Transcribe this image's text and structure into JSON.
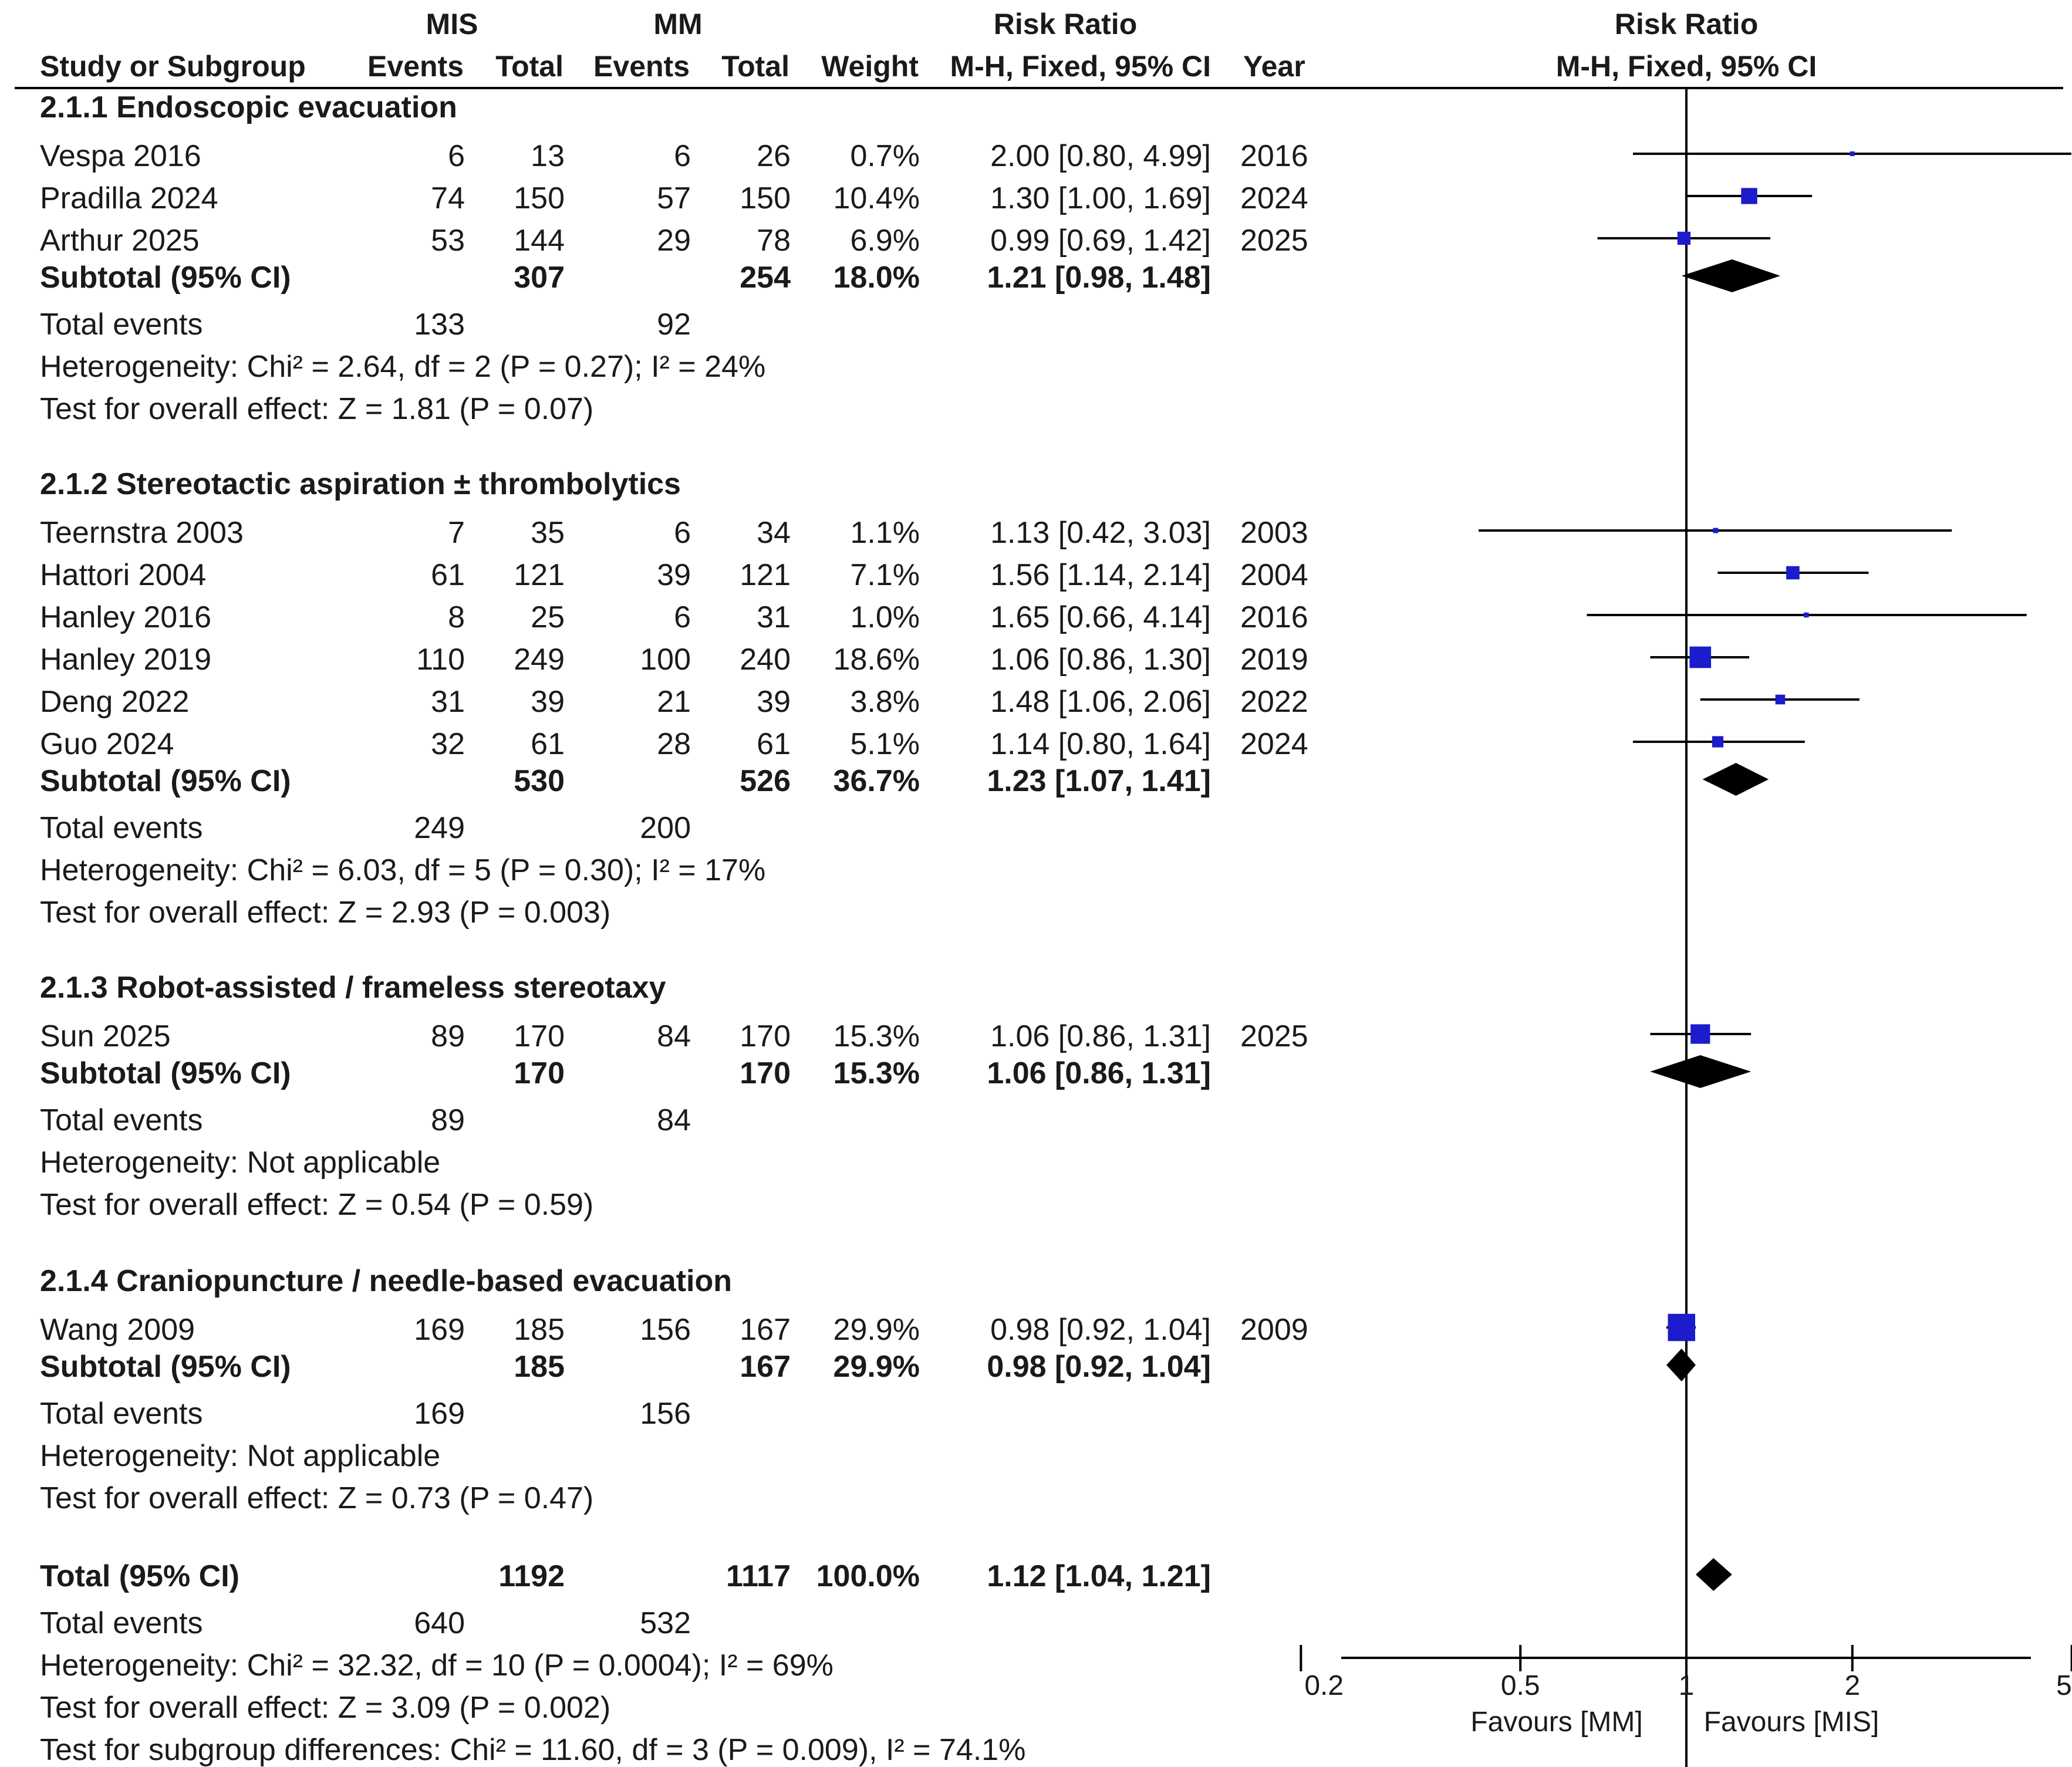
{
  "headers": {
    "mis": "MIS",
    "mm": "MM",
    "risk_ratio_left": "Risk Ratio",
    "risk_ratio_right": "Risk Ratio",
    "study": "Study or Subgroup",
    "events_mis": "Events",
    "total_mis": "Total",
    "events_mm": "Events",
    "total_mm": "Total",
    "weight": "Weight",
    "method_left": "M-H, Fixed, 95% CI",
    "year": "Year",
    "method_right": "M-H, Fixed, 95% CI"
  },
  "subgroups": [
    {
      "title": "2.1.1 Endoscopic evacuation",
      "studies": [
        {
          "name": "Vespa 2016",
          "e1": "6",
          "t1": "13",
          "e2": "6",
          "t2": "26",
          "weight": "0.7%",
          "ci": "2.00 [0.80, 4.99]",
          "year": "2016"
        },
        {
          "name": "Pradilla 2024",
          "e1": "74",
          "t1": "150",
          "e2": "57",
          "t2": "150",
          "weight": "10.4%",
          "ci": "1.30 [1.00, 1.69]",
          "year": "2024"
        },
        {
          "name": "Arthur 2025",
          "e1": "53",
          "t1": "144",
          "e2": "29",
          "t2": "78",
          "weight": "6.9%",
          "ci": "0.99 [0.69, 1.42]",
          "year": "2025"
        }
      ],
      "subtotal": {
        "label": "Subtotal (95% CI)",
        "t1": "307",
        "t2": "254",
        "weight": "18.0%",
        "ci": "1.21 [0.98, 1.48]"
      },
      "total_events": {
        "label": "Total events",
        "e1": "133",
        "e2": "92"
      },
      "heterogeneity": "Heterogeneity: Chi² = 2.64, df = 2 (P = 0.27); I² = 24%",
      "overall": "Test for overall effect: Z = 1.81 (P = 0.07)"
    },
    {
      "title": "2.1.2 Stereotactic aspiration ± thrombolytics",
      "studies": [
        {
          "name": "Teernstra 2003",
          "e1": "7",
          "t1": "35",
          "e2": "6",
          "t2": "34",
          "weight": "1.1%",
          "ci": "1.13 [0.42, 3.03]",
          "year": "2003"
        },
        {
          "name": "Hattori 2004",
          "e1": "61",
          "t1": "121",
          "e2": "39",
          "t2": "121",
          "weight": "7.1%",
          "ci": "1.56 [1.14, 2.14]",
          "year": "2004"
        },
        {
          "name": "Hanley 2016",
          "e1": "8",
          "t1": "25",
          "e2": "6",
          "t2": "31",
          "weight": "1.0%",
          "ci": "1.65 [0.66, 4.14]",
          "year": "2016"
        },
        {
          "name": "Hanley 2019",
          "e1": "110",
          "t1": "249",
          "e2": "100",
          "t2": "240",
          "weight": "18.6%",
          "ci": "1.06 [0.86, 1.30]",
          "year": "2019"
        },
        {
          "name": "Deng 2022",
          "e1": "31",
          "t1": "39",
          "e2": "21",
          "t2": "39",
          "weight": "3.8%",
          "ci": "1.48 [1.06, 2.06]",
          "year": "2022"
        },
        {
          "name": "Guo 2024",
          "e1": "32",
          "t1": "61",
          "e2": "28",
          "t2": "61",
          "weight": "5.1%",
          "ci": "1.14 [0.80, 1.64]",
          "year": "2024"
        }
      ],
      "subtotal": {
        "label": "Subtotal (95% CI)",
        "t1": "530",
        "t2": "526",
        "weight": "36.7%",
        "ci": "1.23 [1.07, 1.41]"
      },
      "total_events": {
        "label": "Total events",
        "e1": "249",
        "e2": "200"
      },
      "heterogeneity": "Heterogeneity: Chi² = 6.03, df = 5 (P = 0.30); I² = 17%",
      "overall": "Test for overall effect: Z = 2.93 (P = 0.003)"
    },
    {
      "title": "2.1.3 Robot-assisted / frameless stereotaxy",
      "studies": [
        {
          "name": "Sun 2025",
          "e1": "89",
          "t1": "170",
          "e2": "84",
          "t2": "170",
          "weight": "15.3%",
          "ci": "1.06 [0.86, 1.31]",
          "year": "2025"
        }
      ],
      "subtotal": {
        "label": "Subtotal (95% CI)",
        "t1": "170",
        "t2": "170",
        "weight": "15.3%",
        "ci": "1.06 [0.86, 1.31]"
      },
      "total_events": {
        "label": "Total events",
        "e1": "89",
        "e2": "84"
      },
      "heterogeneity": "Heterogeneity: Not applicable",
      "overall": "Test for overall effect: Z = 0.54 (P = 0.59)"
    },
    {
      "title": "2.1.4 Craniopuncture / needle-based evacuation",
      "studies": [
        {
          "name": "Wang 2009",
          "e1": "169",
          "t1": "185",
          "e2": "156",
          "t2": "167",
          "weight": "29.9%",
          "ci": "0.98 [0.92, 1.04]",
          "year": "2009"
        }
      ],
      "subtotal": {
        "label": "Subtotal (95% CI)",
        "t1": "185",
        "t2": "167",
        "weight": "29.9%",
        "ci": "0.98 [0.92, 1.04]"
      },
      "total_events": {
        "label": "Total events",
        "e1": "169",
        "e2": "156"
      },
      "heterogeneity": "Heterogeneity: Not applicable",
      "overall": "Test for overall effect: Z = 0.73 (P = 0.47)"
    }
  ],
  "total": {
    "label": "Total (95% CI)",
    "t1": "1192",
    "t2": "1117",
    "weight": "100.0%",
    "ci": "1.12 [1.04, 1.21]",
    "events_label": "Total events",
    "e1": "640",
    "e2": "532",
    "heterogeneity": "Heterogeneity: Chi² = 32.32, df = 10 (P = 0.0004); I² = 69%",
    "overall": "Test for overall effect: Z = 3.09 (P = 0.002)",
    "subgroup_diff": "Test for subgroup differences: Chi² = 11.60, df = 3 (P = 0.009), I² = 74.1%"
  },
  "axis": {
    "ticks": [
      0.2,
      0.5,
      1,
      2,
      5
    ],
    "tick_labels": [
      "0.2",
      "0.5",
      "1",
      "2",
      "5"
    ],
    "favours_left": "Favours [MM]",
    "favours_right": "Favours [MIS]"
  },
  "colors": {
    "square": "#1c1ccc",
    "diamond": "#000000",
    "line": "#000000"
  },
  "chart_data": {
    "type": "forest",
    "title": "Risk Ratio M-H, Fixed, 95% CI",
    "xlabel_left": "Favours [MM]",
    "xlabel_right": "Favours [MIS]",
    "xscale": "log",
    "xlim": [
      0.2,
      5
    ],
    "studies": [
      {
        "name": "Vespa 2016",
        "rr": 2.0,
        "lo": 0.8,
        "hi": 4.99,
        "weight": 0.7
      },
      {
        "name": "Pradilla 2024",
        "rr": 1.3,
        "lo": 1.0,
        "hi": 1.69,
        "weight": 10.4
      },
      {
        "name": "Arthur 2025",
        "rr": 0.99,
        "lo": 0.69,
        "hi": 1.42,
        "weight": 6.9
      },
      {
        "name": "Teernstra 2003",
        "rr": 1.13,
        "lo": 0.42,
        "hi": 3.03,
        "weight": 1.1
      },
      {
        "name": "Hattori 2004",
        "rr": 1.56,
        "lo": 1.14,
        "hi": 2.14,
        "weight": 7.1
      },
      {
        "name": "Hanley 2016",
        "rr": 1.65,
        "lo": 0.66,
        "hi": 4.14,
        "weight": 1.0
      },
      {
        "name": "Hanley 2019",
        "rr": 1.06,
        "lo": 0.86,
        "hi": 1.3,
        "weight": 18.6
      },
      {
        "name": "Deng 2022",
        "rr": 1.48,
        "lo": 1.06,
        "hi": 2.06,
        "weight": 3.8
      },
      {
        "name": "Guo 2024",
        "rr": 1.14,
        "lo": 0.8,
        "hi": 1.64,
        "weight": 5.1
      },
      {
        "name": "Sun 2025",
        "rr": 1.06,
        "lo": 0.86,
        "hi": 1.31,
        "weight": 15.3
      },
      {
        "name": "Wang 2009",
        "rr": 0.98,
        "lo": 0.92,
        "hi": 1.04,
        "weight": 29.9
      }
    ],
    "subtotals": [
      {
        "name": "2.1.1 Endoscopic evacuation",
        "rr": 1.21,
        "lo": 0.98,
        "hi": 1.48
      },
      {
        "name": "2.1.2 Stereotactic aspiration ± thrombolytics",
        "rr": 1.23,
        "lo": 1.07,
        "hi": 1.41
      },
      {
        "name": "2.1.3 Robot-assisted / frameless stereotaxy",
        "rr": 1.06,
        "lo": 0.86,
        "hi": 1.31
      },
      {
        "name": "2.1.4 Craniopuncture / needle-based evacuation",
        "rr": 0.98,
        "lo": 0.92,
        "hi": 1.04
      }
    ],
    "overall": {
      "name": "Total (95% CI)",
      "rr": 1.12,
      "lo": 1.04,
      "hi": 1.21
    }
  }
}
